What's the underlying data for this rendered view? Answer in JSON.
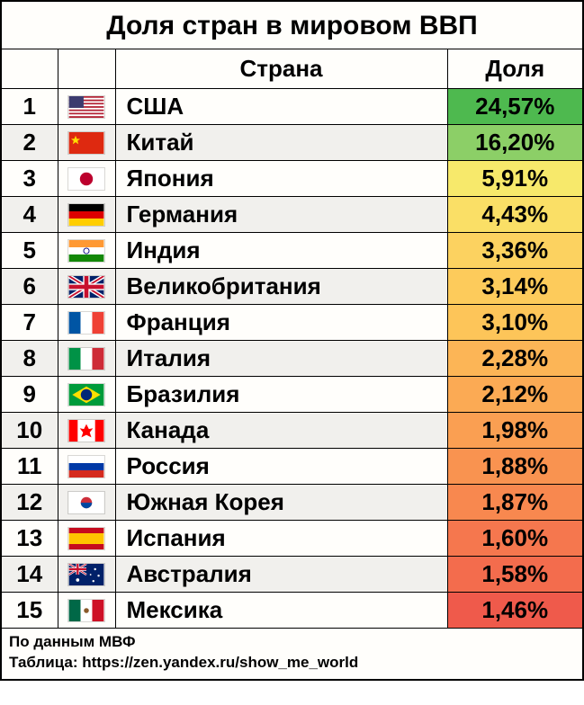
{
  "title": "Доля стран в мировом ВВП",
  "title_fontsize": 30,
  "columns": {
    "rank": "",
    "flag": "",
    "country": "Страна",
    "share": "Доля"
  },
  "header_fontsize": 26,
  "cell_fontsize": 26,
  "row_bg_odd": "#fffefb",
  "row_bg_even": "#f1f0ed",
  "border_color": "#000000",
  "footer_fontsize": 17,
  "footer": {
    "source": "По данным МВФ",
    "credit": "Таблица: https://zen.yandex.ru/show_me_world"
  },
  "rows": [
    {
      "rank": "1",
      "country": "США",
      "share": "24,57%",
      "share_bg": "#4eb94f",
      "flag": "us"
    },
    {
      "rank": "2",
      "country": "Китай",
      "share": "16,20%",
      "share_bg": "#8ccf67",
      "flag": "cn"
    },
    {
      "rank": "3",
      "country": "Япония",
      "share": "5,91%",
      "share_bg": "#f7e96b",
      "flag": "jp"
    },
    {
      "rank": "4",
      "country": "Германия",
      "share": "4,43%",
      "share_bg": "#fadf66",
      "flag": "de"
    },
    {
      "rank": "5",
      "country": "Индия",
      "share": "3,36%",
      "share_bg": "#fcd260",
      "flag": "in"
    },
    {
      "rank": "6",
      "country": "Великобритания",
      "share": "3,14%",
      "share_bg": "#fdcb5b",
      "flag": "gb"
    },
    {
      "rank": "7",
      "country": "Франция",
      "share": "3,10%",
      "share_bg": "#fdc559",
      "flag": "fr"
    },
    {
      "rank": "8",
      "country": "Италия",
      "share": "2,28%",
      "share_bg": "#fcb556",
      "flag": "it"
    },
    {
      "rank": "9",
      "country": "Бразилия",
      "share": "2,12%",
      "share_bg": "#fbaa54",
      "flag": "br"
    },
    {
      "rank": "10",
      "country": "Канада",
      "share": "1,98%",
      "share_bg": "#fa9f52",
      "flag": "ca"
    },
    {
      "rank": "11",
      "country": "Россия",
      "share": "1,88%",
      "share_bg": "#f99350",
      "flag": "ru"
    },
    {
      "rank": "12",
      "country": "Южная Корея",
      "share": "1,87%",
      "share_bg": "#f8884f",
      "flag": "kr"
    },
    {
      "rank": "13",
      "country": "Испания",
      "share": "1,60%",
      "share_bg": "#f5774e",
      "flag": "es"
    },
    {
      "rank": "14",
      "country": "Австралия",
      "share": "1,58%",
      "share_bg": "#f36c4d",
      "flag": "au"
    },
    {
      "rank": "15",
      "country": "Мексика",
      "share": "1,46%",
      "share_bg": "#ef5a4b",
      "flag": "mx"
    }
  ],
  "flags": {
    "us": {
      "type": "us"
    },
    "cn": {
      "type": "solid_star",
      "bg": "#de2910",
      "star": "#ffde00"
    },
    "jp": {
      "type": "disc",
      "bg": "#ffffff",
      "disc": "#bc002d"
    },
    "de": {
      "type": "hstripes",
      "colors": [
        "#000000",
        "#dd0000",
        "#ffce00"
      ]
    },
    "in": {
      "type": "hstripes_wheel",
      "colors": [
        "#ff9933",
        "#ffffff",
        "#138808"
      ],
      "wheel": "#000080"
    },
    "gb": {
      "type": "gb"
    },
    "fr": {
      "type": "vstripes",
      "colors": [
        "#0055a4",
        "#ffffff",
        "#ef4135"
      ]
    },
    "it": {
      "type": "vstripes",
      "colors": [
        "#009246",
        "#ffffff",
        "#ce2b37"
      ]
    },
    "br": {
      "type": "br"
    },
    "ca": {
      "type": "ca"
    },
    "ru": {
      "type": "hstripes",
      "colors": [
        "#ffffff",
        "#0039a6",
        "#d52b1e"
      ]
    },
    "kr": {
      "type": "kr"
    },
    "es": {
      "type": "es"
    },
    "au": {
      "type": "au"
    },
    "mx": {
      "type": "mx"
    }
  }
}
